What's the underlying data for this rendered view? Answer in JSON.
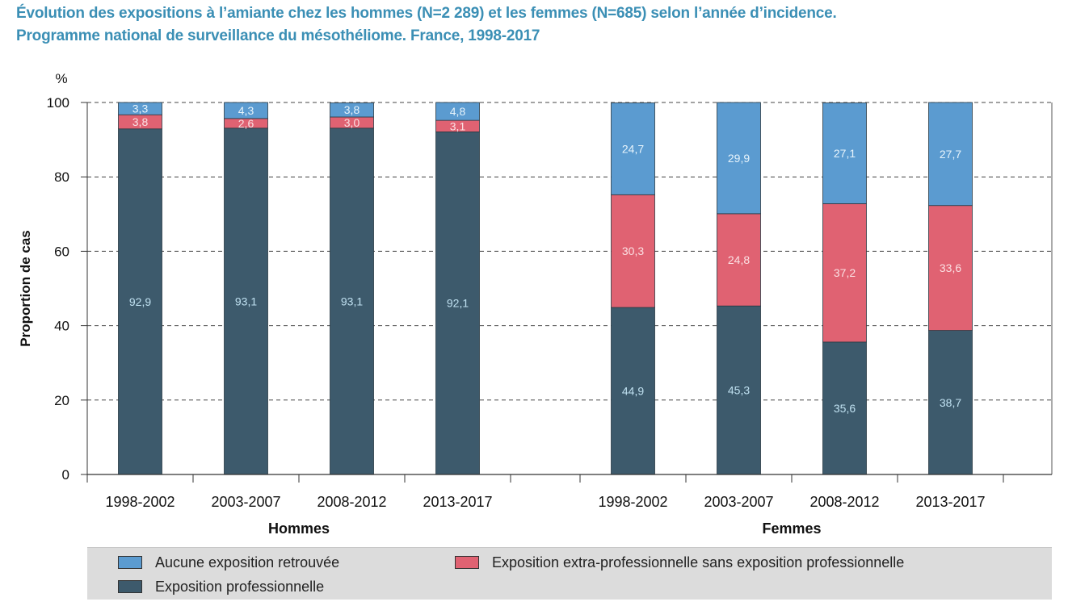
{
  "title": "Évolution des expositions à l’amiante chez les hommes (N=2 289) et les femmes (N=685) selon l’année d’incidence.",
  "subtitle": "Programme national de surveillance du mésothéliome. France, 1998-2017",
  "colors": {
    "aucune": "#5b9bd0",
    "extra": "#e06272",
    "pro": "#3d5a6c",
    "title": "#3b8fb5"
  },
  "chart_data": {
    "type": "bar",
    "stacked": true,
    "ylabel": "Proportion de cas",
    "yunit": "%",
    "ylim": [
      0,
      100
    ],
    "yticks": [
      0,
      20,
      40,
      60,
      80,
      100
    ],
    "grid": true,
    "legend_position": "bottom",
    "groups": [
      {
        "label": "Hommes",
        "categories": [
          "1998-2002",
          "2003-2007",
          "2008-2012",
          "2013-2017"
        ],
        "series": [
          {
            "name": "Exposition professionnelle",
            "key": "pro",
            "values": [
              92.9,
              93.1,
              93.1,
              92.1
            ],
            "labels": [
              "92,9",
              "93,1",
              "93,1",
              "92,1"
            ]
          },
          {
            "name": "Exposition extra-professionnelle sans exposition professionnelle",
            "key": "extra",
            "values": [
              3.8,
              2.6,
              3.0,
              3.1
            ],
            "labels": [
              "3,8",
              "2,6",
              "3,0",
              "3,1"
            ]
          },
          {
            "name": "Aucune exposition retrouvée",
            "key": "aucune",
            "values": [
              3.3,
              4.3,
              3.8,
              4.8
            ],
            "labels": [
              "3,3",
              "4,3",
              "3,8",
              "4,8"
            ]
          }
        ]
      },
      {
        "label": "Femmes",
        "categories": [
          "1998-2002",
          "2003-2007",
          "2008-2012",
          "2013-2017"
        ],
        "series": [
          {
            "name": "Exposition professionnelle",
            "key": "pro",
            "values": [
              44.9,
              45.3,
              35.6,
              38.7
            ],
            "labels": [
              "44,9",
              "45,3",
              "35,6",
              "38,7"
            ]
          },
          {
            "name": "Exposition extra-professionnelle sans exposition professionnelle",
            "key": "extra",
            "values": [
              30.3,
              24.8,
              37.2,
              33.6
            ],
            "labels": [
              "30,3",
              "24,8",
              "37,2",
              "33,6"
            ]
          },
          {
            "name": "Aucune exposition retrouvée",
            "key": "aucune",
            "values": [
              24.7,
              29.9,
              27.1,
              27.7
            ],
            "labels": [
              "24,7",
              "29,9",
              "27,1",
              "27,7"
            ]
          }
        ]
      }
    ]
  },
  "legend": [
    {
      "label": "Aucune exposition retrouvée",
      "key": "aucune"
    },
    {
      "label": "Exposition extra-professionnelle sans exposition professionnelle",
      "key": "extra"
    },
    {
      "label": "Exposition professionnelle",
      "key": "pro"
    }
  ]
}
